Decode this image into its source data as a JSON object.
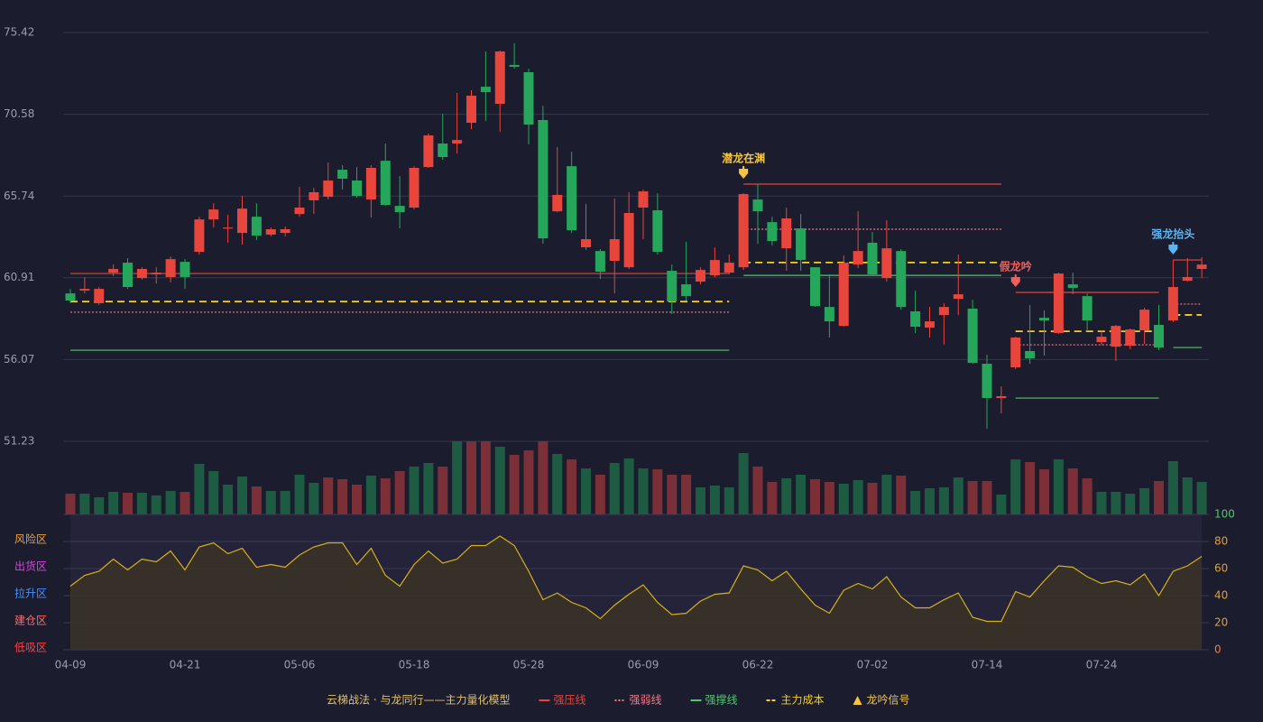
{
  "chart_data": {
    "type": "candlestick",
    "categories": [
      "04-09",
      null,
      null,
      null,
      null,
      null,
      null,
      null,
      "04-21",
      null,
      null,
      null,
      null,
      null,
      null,
      null,
      "05-06",
      null,
      null,
      null,
      null,
      null,
      null,
      null,
      "05-18",
      null,
      null,
      null,
      null,
      null,
      null,
      null,
      "05-28",
      null,
      null,
      null,
      null,
      null,
      null,
      null,
      "06-09",
      null,
      null,
      null,
      null,
      null,
      null,
      null,
      "06-22",
      null,
      null,
      null,
      null,
      null,
      null,
      null,
      "07-02",
      null,
      null,
      null,
      null,
      null,
      null,
      null,
      "07-14",
      null,
      null,
      null,
      null,
      null,
      null,
      null,
      "07-24",
      null,
      null,
      null,
      null,
      null,
      null,
      null
    ],
    "ylim": [
      51.23,
      75.42
    ],
    "yticks": [
      51.23,
      56.07,
      60.91,
      65.74,
      70.58,
      75.42
    ],
    "up_color": "#e8453c",
    "down_color": "#26a65b",
    "ohlc": [
      [
        59.98,
        60.25,
        59.4,
        59.56
      ],
      [
        60.15,
        60.95,
        59.98,
        60.25
      ],
      [
        59.4,
        60.36,
        59.29,
        60.25
      ],
      [
        61.21,
        61.69,
        61.0,
        61.43
      ],
      [
        61.8,
        62.07,
        60.25,
        60.36
      ],
      [
        60.89,
        61.53,
        60.79,
        61.43
      ],
      [
        61.11,
        61.53,
        60.57,
        61.21
      ],
      [
        60.95,
        62.17,
        60.63,
        62.01
      ],
      [
        61.85,
        62.01,
        60.25,
        60.95
      ],
      [
        62.44,
        64.52,
        62.28,
        64.36
      ],
      [
        64.36,
        65.32,
        63.88,
        64.95
      ],
      [
        63.83,
        64.63,
        62.98,
        63.88
      ],
      [
        63.56,
        65.75,
        62.87,
        65.0
      ],
      [
        64.52,
        65.32,
        63.14,
        63.4
      ],
      [
        63.46,
        63.88,
        63.35,
        63.78
      ],
      [
        63.56,
        63.94,
        63.35,
        63.78
      ],
      [
        64.68,
        66.29,
        64.52,
        65.06
      ],
      [
        65.49,
        66.23,
        64.68,
        65.97
      ],
      [
        65.7,
        67.73,
        65.54,
        66.66
      ],
      [
        67.3,
        67.57,
        66.13,
        66.77
      ],
      [
        66.66,
        67.46,
        65.65,
        65.75
      ],
      [
        65.54,
        67.57,
        64.47,
        67.41
      ],
      [
        67.83,
        68.85,
        65.16,
        65.22
      ],
      [
        65.16,
        66.93,
        63.83,
        64.79
      ],
      [
        65.06,
        67.51,
        64.95,
        67.41
      ],
      [
        67.46,
        69.44,
        67.41,
        69.33
      ],
      [
        68.85,
        70.61,
        67.89,
        68.05
      ],
      [
        68.85,
        71.84,
        68.26,
        69.06
      ],
      [
        70.08,
        72.0,
        69.7,
        71.68
      ],
      [
        72.21,
        74.3,
        70.18,
        71.89
      ],
      [
        71.2,
        74.35,
        69.54,
        74.3
      ],
      [
        73.5,
        74.78,
        73.28,
        73.39
      ],
      [
        73.07,
        73.28,
        68.8,
        69.97
      ],
      [
        70.24,
        71.09,
        62.92,
        63.24
      ],
      [
        64.84,
        68.64,
        64.79,
        65.81
      ],
      [
        67.51,
        68.37,
        63.56,
        63.72
      ],
      [
        62.71,
        65.27,
        62.55,
        63.19
      ],
      [
        62.49,
        62.6,
        60.84,
        61.27
      ],
      [
        61.91,
        65.59,
        59.98,
        63.19
      ],
      [
        61.53,
        65.97,
        61.43,
        64.74
      ],
      [
        65.06,
        66.13,
        63.19,
        66.02
      ],
      [
        64.9,
        65.91,
        62.28,
        62.44
      ],
      [
        61.32,
        61.69,
        58.76,
        59.5
      ],
      [
        60.52,
        63.03,
        59.56,
        59.82
      ],
      [
        60.68,
        61.53,
        60.52,
        61.37
      ],
      [
        61.05,
        62.71,
        60.95,
        61.96
      ],
      [
        61.21,
        62.28,
        61.11,
        61.8
      ],
      [
        61.53,
        65.91,
        61.37,
        65.86
      ],
      [
        65.54,
        66.45,
        62.92,
        64.84
      ],
      [
        64.2,
        64.52,
        62.82,
        63.08
      ],
      [
        62.65,
        65.06,
        61.32,
        64.42
      ],
      [
        63.83,
        64.68,
        61.32,
        61.96
      ],
      [
        61.53,
        61.53,
        59.18,
        59.24
      ],
      [
        59.18,
        61.11,
        57.37,
        58.33
      ],
      [
        58.06,
        62.23,
        58.01,
        61.8
      ],
      [
        61.69,
        64.84,
        61.48,
        62.49
      ],
      [
        62.98,
        63.62,
        61.0,
        61.11
      ],
      [
        60.89,
        64.31,
        60.68,
        62.65
      ],
      [
        62.49,
        62.6,
        59.02,
        59.18
      ],
      [
        58.92,
        60.15,
        57.64,
        58.01
      ],
      [
        57.96,
        59.18,
        57.37,
        58.33
      ],
      [
        58.7,
        59.4,
        56.94,
        59.18
      ],
      [
        59.66,
        62.28,
        58.7,
        59.93
      ],
      [
        59.08,
        59.61,
        55.82,
        55.87
      ],
      [
        55.82,
        56.35,
        51.97,
        53.79
      ],
      [
        53.79,
        54.48,
        52.88,
        53.9
      ],
      [
        55.61,
        57.42,
        55.5,
        57.37
      ],
      [
        56.57,
        59.29,
        55.82,
        56.14
      ],
      [
        58.54,
        58.97,
        56.3,
        58.38
      ],
      [
        57.64,
        61.21,
        57.58,
        61.16
      ],
      [
        60.52,
        61.21,
        59.93,
        60.31
      ],
      [
        59.82,
        59.98,
        57.74,
        58.38
      ],
      [
        57.1,
        57.8,
        56.94,
        57.42
      ],
      [
        56.83,
        58.12,
        55.98,
        58.06
      ],
      [
        56.89,
        57.9,
        56.67,
        57.85
      ],
      [
        57.8,
        59.13,
        56.99,
        59.02
      ],
      [
        58.12,
        59.29,
        56.62,
        56.78
      ],
      [
        58.38,
        61.96,
        58.28,
        60.36
      ],
      [
        60.73,
        62.07,
        60.68,
        60.95
      ],
      [
        61.43,
        62.12,
        60.89,
        61.69
      ]
    ],
    "levels": [
      {
        "name": "强压线",
        "color": "#e8453c",
        "style": "solid",
        "values": [
          61.16,
          61.16,
          61.16,
          61.16,
          61.16,
          61.16,
          61.16,
          61.16,
          61.16,
          61.16,
          61.16,
          61.16,
          61.16,
          61.16,
          61.16,
          61.16,
          61.16,
          61.16,
          61.16,
          61.16,
          61.16,
          61.16,
          61.16,
          61.16,
          61.16,
          61.16,
          61.16,
          61.16,
          61.16,
          61.16,
          61.16,
          61.16,
          61.16,
          61.16,
          61.16,
          61.16,
          61.16,
          61.16,
          61.16,
          61.16,
          61.16,
          61.16,
          61.16,
          61.16,
          61.16,
          61.16,
          61.16,
          66.45,
          66.45,
          66.45,
          66.45,
          66.45,
          66.45,
          66.45,
          66.45,
          66.45,
          66.45,
          66.45,
          66.45,
          66.45,
          66.45,
          66.45,
          66.45,
          66.45,
          66.45,
          66.45,
          60.04,
          60.04,
          60.04,
          60.04,
          60.04,
          60.04,
          60.04,
          60.04,
          60.04,
          60.04,
          60.04,
          61.96,
          61.96,
          61.96
        ]
      },
      {
        "name": "强弱线",
        "color": "#f07a8a",
        "style": "dotted",
        "values": [
          58.87,
          58.87,
          58.87,
          58.87,
          58.87,
          58.87,
          58.87,
          58.87,
          58.87,
          58.87,
          58.87,
          58.87,
          58.87,
          58.87,
          58.87,
          58.87,
          58.87,
          58.87,
          58.87,
          58.87,
          58.87,
          58.87,
          58.87,
          58.87,
          58.87,
          58.87,
          58.87,
          58.87,
          58.87,
          58.87,
          58.87,
          58.87,
          58.87,
          58.87,
          58.87,
          58.87,
          58.87,
          58.87,
          58.87,
          58.87,
          58.87,
          58.87,
          58.87,
          58.87,
          58.87,
          58.87,
          58.87,
          63.78,
          63.78,
          63.78,
          63.78,
          63.78,
          63.78,
          63.78,
          63.78,
          63.78,
          63.78,
          63.78,
          63.78,
          63.78,
          63.78,
          63.78,
          63.78,
          63.78,
          63.78,
          63.78,
          56.94,
          56.94,
          56.94,
          56.94,
          56.94,
          56.94,
          56.94,
          56.94,
          56.94,
          56.94,
          56.94,
          59.35,
          59.35,
          59.35
        ]
      },
      {
        "name": "强撑线",
        "color": "#4cc96a",
        "style": "solid",
        "values": [
          56.62,
          56.62,
          56.62,
          56.62,
          56.62,
          56.62,
          56.62,
          56.62,
          56.62,
          56.62,
          56.62,
          56.62,
          56.62,
          56.62,
          56.62,
          56.62,
          56.62,
          56.62,
          56.62,
          56.62,
          56.62,
          56.62,
          56.62,
          56.62,
          56.62,
          56.62,
          56.62,
          56.62,
          56.62,
          56.62,
          56.62,
          56.62,
          56.62,
          56.62,
          56.62,
          56.62,
          56.62,
          56.62,
          56.62,
          56.62,
          56.62,
          56.62,
          56.62,
          56.62,
          56.62,
          56.62,
          56.62,
          61.05,
          61.05,
          61.05,
          61.05,
          61.05,
          61.05,
          61.05,
          61.05,
          61.05,
          61.05,
          61.05,
          61.05,
          61.05,
          61.05,
          61.05,
          61.05,
          61.05,
          61.05,
          61.05,
          53.79,
          53.79,
          53.79,
          53.79,
          53.79,
          53.79,
          53.79,
          53.79,
          53.79,
          53.79,
          53.79,
          56.78,
          56.78,
          56.78
        ]
      },
      {
        "name": "主力成本",
        "color": "#f5d020",
        "style": "dashed",
        "values": [
          59.5,
          59.5,
          59.5,
          59.5,
          59.5,
          59.5,
          59.5,
          59.5,
          59.5,
          59.5,
          59.5,
          59.5,
          59.5,
          59.5,
          59.5,
          59.5,
          59.5,
          59.5,
          59.5,
          59.5,
          59.5,
          59.5,
          59.5,
          59.5,
          59.5,
          59.5,
          59.5,
          59.5,
          59.5,
          59.5,
          59.5,
          59.5,
          59.5,
          59.5,
          59.5,
          59.5,
          59.5,
          59.5,
          59.5,
          59.5,
          59.5,
          59.5,
          59.5,
          59.5,
          59.5,
          59.5,
          59.5,
          61.81,
          61.81,
          61.81,
          61.81,
          61.81,
          61.81,
          61.81,
          61.81,
          61.81,
          61.81,
          61.81,
          61.81,
          61.81,
          61.81,
          61.81,
          61.81,
          61.81,
          61.81,
          61.81,
          57.74,
          57.74,
          57.74,
          57.74,
          57.74,
          57.74,
          57.74,
          57.74,
          57.74,
          57.74,
          57.74,
          58.71,
          58.71,
          58.71
        ]
      }
    ],
    "signals": [
      {
        "index": 47,
        "label": "潜龙在渊",
        "color": "#f5c542"
      },
      {
        "index": 66,
        "label": "假龙吟",
        "color": "#f0605a"
      },
      {
        "index": 77,
        "label": "强龙抬头",
        "color": "#5ab4f0"
      }
    ],
    "signal_legend": {
      "label": "龙吟信号",
      "color": "#f5c542"
    },
    "volume": {
      "values": [
        23,
        23,
        19,
        25,
        24,
        24,
        21,
        26,
        25,
        56,
        48,
        33,
        42,
        31,
        26,
        26,
        44,
        35,
        41,
        39,
        33,
        43,
        40,
        48,
        53,
        57,
        53,
        81,
        81,
        81,
        75,
        66,
        71,
        81,
        67,
        61,
        51,
        44,
        57,
        62,
        51,
        50,
        44,
        44,
        30,
        32,
        30,
        68,
        53,
        36,
        40,
        44,
        39,
        36,
        34,
        38,
        35,
        44,
        43,
        26,
        29,
        30,
        41,
        37,
        37,
        22,
        61,
        58,
        50,
        61,
        51,
        40,
        25,
        25,
        23,
        29,
        37,
        59,
        41,
        36
      ],
      "colors": [
        "#7a3036",
        "#1e5b43",
        "#1e5b43",
        "#1e5b43",
        "#7a3036",
        "#1e5b43",
        "#1e5b43",
        "#1e5b43",
        "#7a3036",
        "#1e5b43",
        "#1e5b43",
        "#1e5b43",
        "#1e5b43",
        "#7a3036",
        "#1e5b43",
        "#1e5b43",
        "#1e5b43",
        "#1e5b43",
        "#7a3036",
        "#7a3036",
        "#7a3036",
        "#1e5b43",
        "#7a3036",
        "#7a3036",
        "#1e5b43",
        "#1e5b43",
        "#7a3036",
        "#1e5b43",
        "#7a3036",
        "#7a3036",
        "#1e5b43",
        "#7a3036",
        "#7a3036",
        "#7a3036",
        "#1e5b43",
        "#7a3036",
        "#1e5b43",
        "#7a3036",
        "#1e5b43",
        "#1e5b43",
        "#1e5b43",
        "#7a3036",
        "#7a3036",
        "#7a3036",
        "#1e5b43",
        "#1e5b43",
        "#1e5b43",
        "#1e5b43",
        "#7a3036",
        "#7a3036",
        "#1e5b43",
        "#1e5b43",
        "#7a3036",
        "#7a3036",
        "#1e5b43",
        "#1e5b43",
        "#7a3036",
        "#1e5b43",
        "#7a3036",
        "#1e5b43",
        "#1e5b43",
        "#1e5b43",
        "#1e5b43",
        "#7a3036",
        "#7a3036",
        "#1e5b43",
        "#1e5b43",
        "#7a3036",
        "#7a3036",
        "#1e5b43",
        "#7a3036",
        "#7a3036",
        "#1e5b43",
        "#1e5b43",
        "#1e5b43",
        "#1e5b43",
        "#7a3036",
        "#1e5b43",
        "#1e5b43",
        "#1e5b43"
      ]
    },
    "indicator": {
      "type": "area",
      "color": "#d4b020",
      "ylim": [
        0,
        100
      ],
      "yticks": [
        0,
        20,
        40,
        60,
        80,
        100
      ],
      "tick_colors": [
        "#f07a40",
        "#e0a030",
        "#e0a030",
        "#e0a030",
        "#e0a030",
        "#4cc96a"
      ],
      "values": [
        47,
        55,
        58,
        67,
        59,
        67,
        65,
        73,
        59,
        76,
        79,
        71,
        75,
        61,
        63,
        61,
        70,
        76,
        79,
        79,
        63,
        75,
        55,
        47,
        63,
        73,
        64,
        67,
        77,
        77,
        84,
        77,
        58,
        37,
        42,
        35,
        31,
        23,
        33,
        41,
        48,
        35,
        26,
        27,
        36,
        41,
        42,
        62,
        59,
        51,
        58,
        45,
        33,
        27,
        44,
        49,
        45,
        54,
        39,
        31,
        31,
        37,
        42,
        24,
        21,
        21,
        43,
        39,
        51,
        62,
        61,
        54,
        49,
        51,
        48,
        56,
        40,
        58,
        62,
        69
      ],
      "zones": [
        {
          "label": "风险区",
          "value": 80,
          "color": "#f0a030"
        },
        {
          "label": "出货区",
          "value": 60,
          "color": "#e040e0"
        },
        {
          "label": "拉升区",
          "value": 40,
          "color": "#4a90ff"
        },
        {
          "label": "建仓区",
          "value": 20,
          "color": "#ff6a6a"
        },
        {
          "label": "低吸区",
          "value": 0,
          "color": "#ff4040"
        }
      ]
    },
    "legend_title": "云梯战法 · 与龙同行——主力量化模型"
  }
}
